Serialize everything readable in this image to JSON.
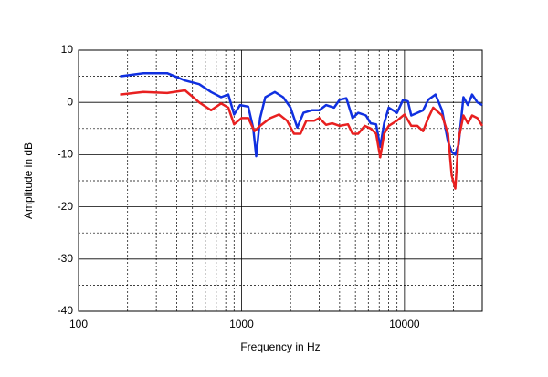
{
  "chart_data": {
    "type": "line",
    "x_label": "Frequency in Hz",
    "y_label": "Amplitude in dB",
    "xscale": "log",
    "xlim": [
      100,
      30000
    ],
    "ylim": [
      -40,
      10
    ],
    "xticks": [
      100,
      1000,
      10000
    ],
    "yticks": [
      -40,
      -30,
      -20,
      -10,
      0,
      10
    ],
    "xminorticks": [
      200,
      300,
      400,
      500,
      600,
      700,
      800,
      900,
      2000,
      3000,
      4000,
      5000,
      6000,
      7000,
      8000,
      9000,
      20000
    ],
    "yminorticks": [
      -35,
      -25,
      -15,
      -5,
      5
    ],
    "grid": true,
    "series": [
      {
        "color": "#1030e0",
        "x": [
          180,
          250,
          350,
          450,
          550,
          650,
          750,
          830,
          900,
          980,
          1100,
          1180,
          1230,
          1300,
          1400,
          1600,
          1800,
          2000,
          2200,
          2400,
          2700,
          3000,
          3300,
          3700,
          4000,
          4400,
          4800,
          5200,
          5800,
          6200,
          6700,
          7100,
          7500,
          8000,
          9000,
          9800,
          10500,
          11000,
          12000,
          13000,
          14000,
          15500,
          17000,
          18500,
          19500,
          20500,
          21500,
          23000,
          24500,
          26000,
          28000,
          30000
        ],
        "values": [
          5,
          5.6,
          5.6,
          4.2,
          3.5,
          2,
          1,
          1.5,
          -2.3,
          -0.5,
          -0.8,
          -5,
          -10.3,
          -3,
          1,
          2,
          1,
          -1,
          -4.8,
          -2,
          -1.5,
          -1.5,
          -0.5,
          -1,
          0.5,
          0.8,
          -3,
          -2,
          -2.5,
          -4,
          -4.2,
          -8.5,
          -4,
          -1,
          -2,
          0.5,
          0.2,
          -2.5,
          -2,
          -1.5,
          0.5,
          1.5,
          -1.5,
          -7.5,
          -9.5,
          -10,
          -8,
          1,
          -0.5,
          1.5,
          0,
          -0.5
        ]
      },
      {
        "color": "#e82020",
        "x": [
          180,
          250,
          350,
          450,
          550,
          650,
          750,
          830,
          900,
          1000,
          1100,
          1200,
          1300,
          1500,
          1700,
          1900,
          2100,
          2300,
          2500,
          2800,
          3000,
          3300,
          3600,
          4000,
          4500,
          4800,
          5200,
          5700,
          6200,
          6700,
          7100,
          7500,
          8000,
          9000,
          10000,
          11000,
          12000,
          13000,
          14000,
          15000,
          17000,
          18500,
          19500,
          20500,
          21500,
          23000,
          24500,
          26000,
          28000,
          30000
        ],
        "values": [
          1.5,
          2,
          1.8,
          2.3,
          0,
          -1.5,
          -0.2,
          -1,
          -4.2,
          -3,
          -3,
          -5.5,
          -4.5,
          -3,
          -2.3,
          -3.5,
          -6,
          -6,
          -3.5,
          -3.5,
          -3,
          -4.3,
          -4,
          -4.5,
          -4.2,
          -6,
          -6,
          -4.5,
          -5,
          -6,
          -10.5,
          -6,
          -4.5,
          -3.5,
          -2.3,
          -4.5,
          -4.5,
          -5.5,
          -3,
          -1,
          -2.5,
          -6,
          -14,
          -16.5,
          -7,
          -2.5,
          -4,
          -2.5,
          -3,
          -4.5
        ]
      }
    ]
  }
}
